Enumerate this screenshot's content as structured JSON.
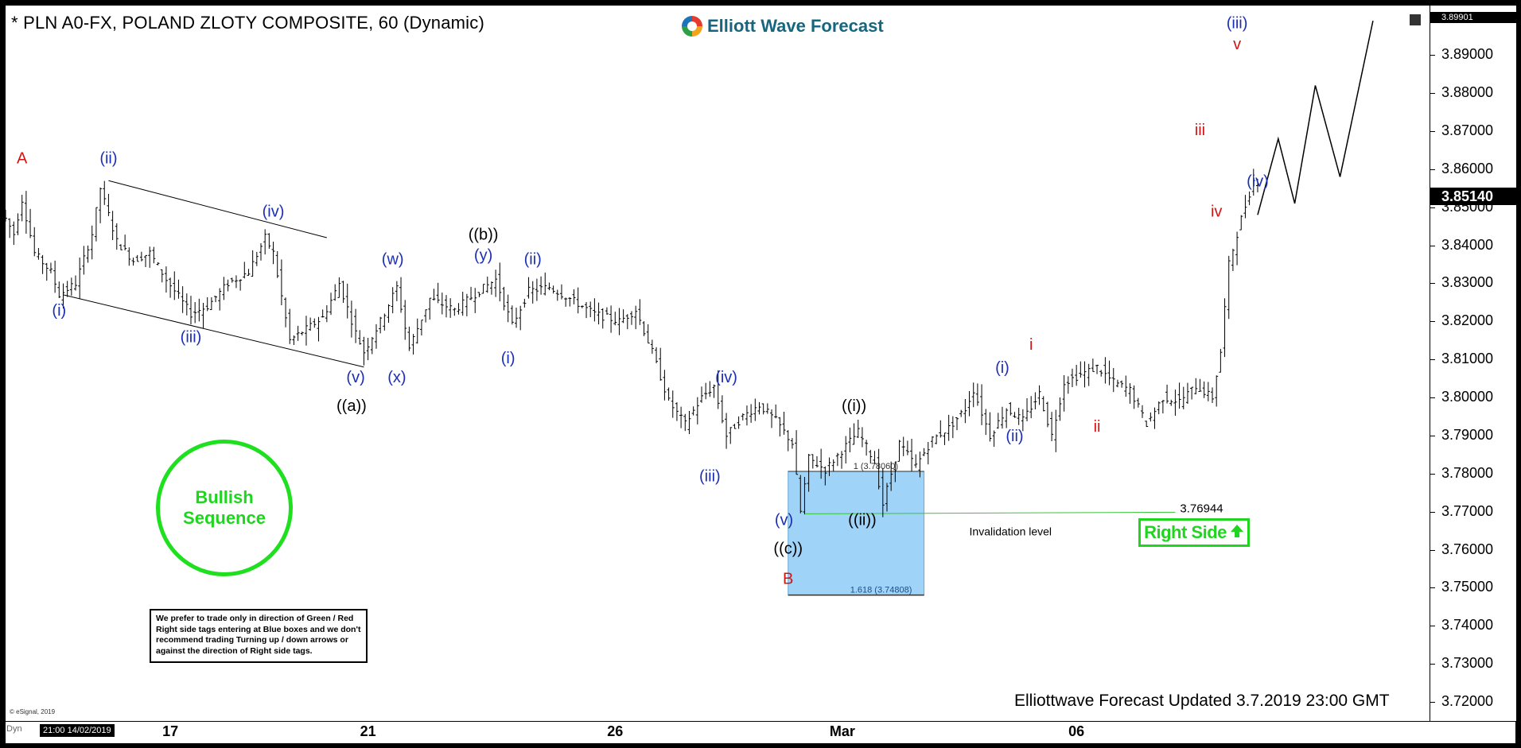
{
  "title": "* PLN A0-FX, POLAND ZLOTY COMPOSITE, 60 (Dynamic)",
  "brand": "Elliott Wave Forecast",
  "updated_label": "Elliottwave Forecast Updated 3.7.2019 23:00 GMT",
  "copyright": "© eSignal, 2019",
  "note_text": "We prefer to trade only in direction of Green / Red Right side tags entering at Blue boxes and we don't recommend trading Turning up / down arrows or against the direction of Right side tags.",
  "bullish_line1": "Bullish",
  "bullish_line2": "Sequence",
  "right_side_label": "Right Side",
  "invalidation_label": "Invalidation level",
  "invalidation_value": "3.76944",
  "box_top_label": "1 (3.78060)",
  "box_bottom_label": "1.618 (3.74808)",
  "last_price": "3.85140",
  "top_price": "3.89901",
  "dyn_label": "Dyn",
  "cursor_date": "21:00 14/02/2019",
  "colors": {
    "blue_box": "#9fd3f7",
    "wave_blue": "#1c2fb3",
    "wave_red": "#d21414",
    "green": "#1fd51f",
    "invalidation": "#3ac43a"
  },
  "chart_data": {
    "type": "ohlc",
    "ylim": [
      3.715,
      3.903
    ],
    "yticks": [
      "3.89000",
      "3.88000",
      "3.87000",
      "3.86000",
      "3.85000",
      "3.84000",
      "3.83000",
      "3.82000",
      "3.81000",
      "3.80000",
      "3.79000",
      "3.78000",
      "3.77000",
      "3.76000",
      "3.75000",
      "3.74000",
      "3.73000",
      "3.72000"
    ],
    "xticks": [
      {
        "label": "17",
        "x": 40
      },
      {
        "label": "21",
        "x": 88
      },
      {
        "label": "26",
        "x": 148
      },
      {
        "label": "Mar",
        "x": 202
      },
      {
        "label": "06",
        "x": 260
      }
    ],
    "price_path": [
      [
        0,
        3.849
      ],
      [
        3,
        3.843
      ],
      [
        5,
        3.852
      ],
      [
        8,
        3.838
      ],
      [
        12,
        3.833
      ],
      [
        14,
        3.827
      ],
      [
        18,
        3.83
      ],
      [
        22,
        3.843
      ],
      [
        24,
        3.855
      ],
      [
        28,
        3.841
      ],
      [
        32,
        3.836
      ],
      [
        36,
        3.838
      ],
      [
        40,
        3.831
      ],
      [
        46,
        3.822
      ],
      [
        50,
        3.824
      ],
      [
        55,
        3.83
      ],
      [
        60,
        3.833
      ],
      [
        64,
        3.842
      ],
      [
        66,
        3.838
      ],
      [
        70,
        3.815
      ],
      [
        74,
        3.818
      ],
      [
        78,
        3.821
      ],
      [
        82,
        3.83
      ],
      [
        86,
        3.817
      ],
      [
        88,
        3.812
      ],
      [
        92,
        3.82
      ],
      [
        96,
        3.829
      ],
      [
        99,
        3.813
      ],
      [
        104,
        3.826
      ],
      [
        110,
        3.823
      ],
      [
        116,
        3.828
      ],
      [
        120,
        3.831
      ],
      [
        124,
        3.819
      ],
      [
        128,
        3.828
      ],
      [
        133,
        3.829
      ],
      [
        138,
        3.826
      ],
      [
        144,
        3.822
      ],
      [
        150,
        3.82
      ],
      [
        154,
        3.823
      ],
      [
        158,
        3.812
      ],
      [
        162,
        3.799
      ],
      [
        166,
        3.793
      ],
      [
        170,
        3.8
      ],
      [
        173,
        3.803
      ],
      [
        176,
        3.79
      ],
      [
        180,
        3.795
      ],
      [
        184,
        3.798
      ],
      [
        188,
        3.794
      ],
      [
        192,
        3.788
      ],
      [
        194,
        3.77
      ],
      [
        196,
        3.784
      ],
      [
        200,
        3.781
      ],
      [
        204,
        3.786
      ],
      [
        208,
        3.791
      ],
      [
        212,
        3.783
      ],
      [
        214,
        3.772
      ],
      [
        218,
        3.788
      ],
      [
        222,
        3.782
      ],
      [
        226,
        3.789
      ],
      [
        230,
        3.792
      ],
      [
        234,
        3.797
      ],
      [
        236,
        3.802
      ],
      [
        240,
        3.79
      ],
      [
        244,
        3.797
      ],
      [
        248,
        3.794
      ],
      [
        252,
        3.801
      ],
      [
        255,
        3.79
      ],
      [
        258,
        3.804
      ],
      [
        262,
        3.806
      ],
      [
        266,
        3.808
      ],
      [
        270,
        3.804
      ],
      [
        274,
        3.802
      ],
      [
        278,
        3.793
      ],
      [
        282,
        3.8
      ],
      [
        286,
        3.799
      ],
      [
        290,
        3.803
      ],
      [
        294,
        3.8
      ],
      [
        296,
        3.812
      ],
      [
        298,
        3.835
      ],
      [
        301,
        3.847
      ],
      [
        304,
        3.857
      ]
    ],
    "projection": [
      [
        304,
        3.848
      ],
      [
        309,
        3.868
      ],
      [
        313,
        3.851
      ],
      [
        318,
        3.882
      ],
      [
        324,
        3.858
      ],
      [
        332,
        3.899
      ]
    ],
    "channel_lines": [
      {
        "from": [
          25,
          3.857
        ],
        "to": [
          78,
          3.842
        ]
      },
      {
        "from": [
          14,
          3.827
        ],
        "to": [
          87,
          3.808
        ]
      }
    ],
    "fib_box": {
      "x0": 190,
      "x1": 223,
      "top": 3.7806,
      "bottom": 3.74808
    },
    "invalidation": {
      "x0": 194,
      "x1": 284,
      "value": 3.76944
    },
    "x_domain": [
      0,
      338
    ],
    "wave_labels": [
      {
        "text": "A",
        "x": 4,
        "y": 3.8615,
        "color": "red"
      },
      {
        "text": "(ii)",
        "x": 25,
        "y": 3.8615,
        "color": "blue"
      },
      {
        "text": "(iv)",
        "x": 65,
        "y": 3.8475,
        "color": "blue"
      },
      {
        "text": "(i)",
        "x": 13,
        "y": 3.8215,
        "color": "blue"
      },
      {
        "text": "(iii)",
        "x": 45,
        "y": 3.8145,
        "color": "blue"
      },
      {
        "text": "(v)",
        "x": 85,
        "y": 3.804,
        "color": "blue"
      },
      {
        "text": "((a))",
        "x": 84,
        "y": 3.7965,
        "color": "black"
      },
      {
        "text": "(w)",
        "x": 94,
        "y": 3.835,
        "color": "blue"
      },
      {
        "text": "(x)",
        "x": 95,
        "y": 3.804,
        "color": "blue"
      },
      {
        "text": "((b))",
        "x": 116,
        "y": 3.8415,
        "color": "black"
      },
      {
        "text": "(y)",
        "x": 116,
        "y": 3.836,
        "color": "blue"
      },
      {
        "text": "(ii)",
        "x": 128,
        "y": 3.835,
        "color": "blue"
      },
      {
        "text": "(i)",
        "x": 122,
        "y": 3.809,
        "color": "blue"
      },
      {
        "text": "(iv)",
        "x": 175,
        "y": 3.804,
        "color": "blue"
      },
      {
        "text": "(iii)",
        "x": 171,
        "y": 3.778,
        "color": "blue"
      },
      {
        "text": "((i))",
        "x": 206,
        "y": 3.7965,
        "color": "black"
      },
      {
        "text": "(v)",
        "x": 189,
        "y": 3.7665,
        "color": "blue"
      },
      {
        "text": "((ii))",
        "x": 208,
        "y": 3.7665,
        "color": "black"
      },
      {
        "text": "((c))",
        "x": 190,
        "y": 3.759,
        "color": "black"
      },
      {
        "text": "B",
        "x": 190,
        "y": 3.751,
        "color": "red"
      },
      {
        "text": "(i)",
        "x": 242,
        "y": 3.8065,
        "color": "blue"
      },
      {
        "text": "i",
        "x": 249,
        "y": 3.8125,
        "color": "red"
      },
      {
        "text": "(ii)",
        "x": 245,
        "y": 3.7885,
        "color": "blue"
      },
      {
        "text": "ii",
        "x": 265,
        "y": 3.791,
        "color": "red"
      },
      {
        "text": "iii",
        "x": 290,
        "y": 3.869,
        "color": "red"
      },
      {
        "text": "iv",
        "x": 294,
        "y": 3.8475,
        "color": "red"
      },
      {
        "text": "(iii)",
        "x": 299,
        "y": 3.897,
        "color": "blue"
      },
      {
        "text": "v",
        "x": 299,
        "y": 3.8915,
        "color": "red"
      },
      {
        "text": "(iv)",
        "x": 304,
        "y": 3.8555,
        "color": "blue"
      }
    ]
  }
}
